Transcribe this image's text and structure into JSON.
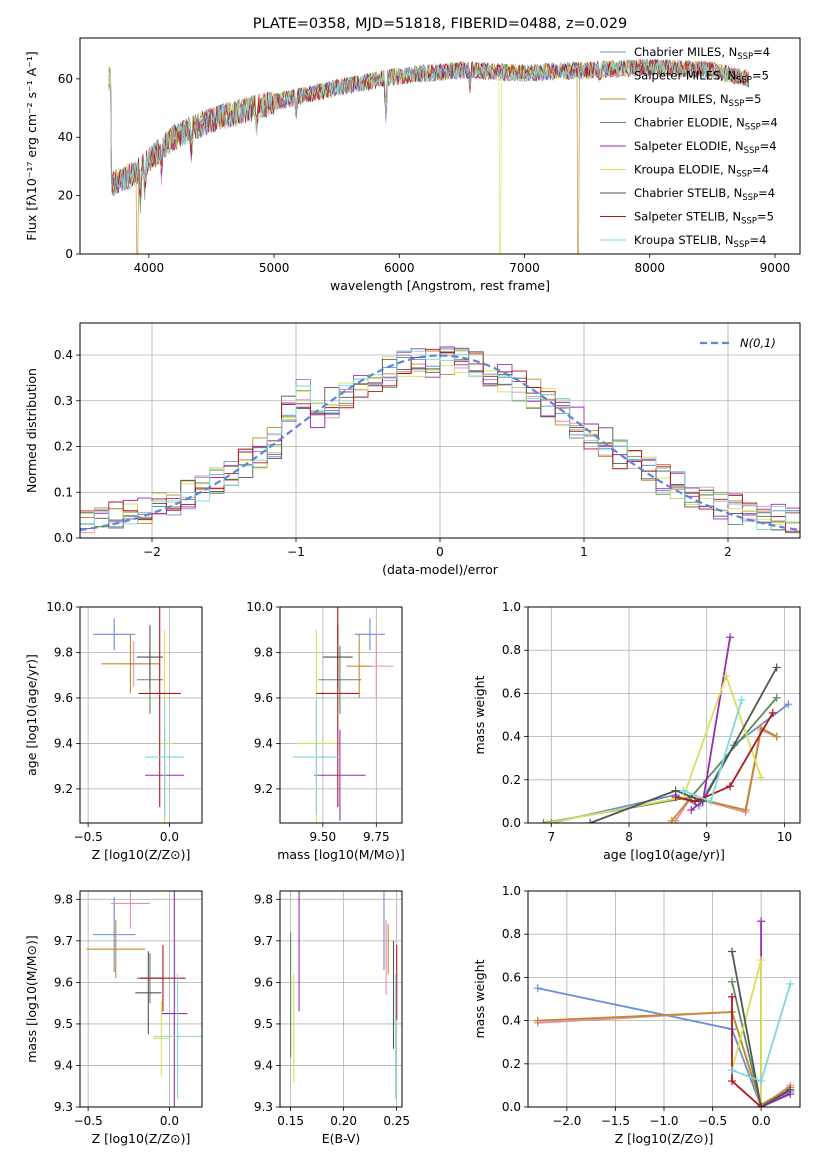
{
  "page_title": "PLATE=0358, MJD=51818, FIBERID=0488, z=0.029",
  "models": [
    {
      "name": "Chabrier MILES",
      "n": "4",
      "color": "#6a8ed8"
    },
    {
      "name": "Salpeter MILES",
      "n": "5",
      "color": "#e58fa8"
    },
    {
      "name": "Kroupa MILES",
      "n": "5",
      "color": "#c28a2f"
    },
    {
      "name": "Chabrier ELODIE",
      "n": "4",
      "color": "#5c8a5c"
    },
    {
      "name": "Salpeter ELODIE",
      "n": "4",
      "color": "#9a2bb5"
    },
    {
      "name": "Kroupa ELODIE",
      "n": "4",
      "color": "#d8e05a"
    },
    {
      "name": "Chabrier STELIB",
      "n": "4",
      "color": "#555555"
    },
    {
      "name": "Salpeter STELIB",
      "n": "5",
      "color": "#b0171d"
    },
    {
      "name": "Kroupa STELIB",
      "n": "4",
      "color": "#7fd7dc"
    }
  ],
  "nssp_label": "N",
  "nssp_sub": "SSP",
  "chart_data": [
    {
      "id": "spectrum",
      "type": "line",
      "xlabel": "wavelength [Angstrom, rest frame]",
      "ylabel": "Flux [fλ10⁻¹⁷ erg cm⁻² s⁻¹ A⁻¹]",
      "xlim": [
        3450,
        9200
      ],
      "ylim": [
        0,
        74
      ],
      "xticks": [
        4000,
        5000,
        6000,
        7000,
        8000,
        9000
      ],
      "yticks": [
        0,
        20,
        40,
        60
      ],
      "continuum": {
        "x": [
          3700,
          3900,
          4000,
          4200,
          4500,
          5000,
          5500,
          6000,
          6500,
          7000,
          7500,
          8000,
          8500,
          8800
        ],
        "y": [
          24,
          28,
          32,
          40,
          46,
          52,
          57,
          61,
          63,
          62,
          63,
          64,
          63,
          60
        ]
      },
      "cutoffs": [
        {
          "series": "Kroupa MILES",
          "at": 3900
        },
        {
          "series": "Kroupa ELODIE",
          "at": 6800
        },
        {
          "series": "Kroupa MILES",
          "at": 7420
        }
      ]
    },
    {
      "id": "residuals",
      "type": "histogram",
      "xlabel": "(data-model)/error",
      "ylabel": "Normed distribution",
      "xlim": [
        -2.5,
        2.5
      ],
      "ylim": [
        0,
        0.47
      ],
      "xticks": [
        -2,
        -1,
        0,
        1,
        2
      ],
      "yticks": [
        0.0,
        0.1,
        0.2,
        0.3,
        0.4
      ],
      "legend": "N(0,1)",
      "legend_position": "top-right"
    },
    {
      "id": "age-vs-Z",
      "type": "scatter",
      "xlabel": "Z [log10(Z/Z⊙)]",
      "ylabel": "age [log10(age/yr)]",
      "xlim": [
        -0.55,
        0.2
      ],
      "ylim": [
        9.05,
        10.0
      ],
      "xticks": [
        -0.5,
        0.0
      ],
      "yticks": [
        9.2,
        9.4,
        9.6,
        9.8,
        10.0
      ],
      "points": [
        {
          "x": -0.34,
          "y": 9.88,
          "xerr": 0.13,
          "yerr": 0.07
        },
        {
          "x": -0.22,
          "y": 9.75,
          "xerr": 0.05,
          "yerr": 0.1
        },
        {
          "x": -0.24,
          "y": 9.75,
          "xerr": 0.18,
          "yerr": 0.13
        },
        {
          "x": -0.12,
          "y": 9.68,
          "xerr": 0.08,
          "yerr": 0.15
        },
        {
          "x": -0.03,
          "y": 9.26,
          "xerr": 0.12,
          "yerr": 0.2
        },
        {
          "x": -0.03,
          "y": 9.4,
          "xerr": 0.05,
          "yerr": 0.5
        },
        {
          "x": -0.12,
          "y": 9.78,
          "xerr": 0.08,
          "yerr": 0.14
        },
        {
          "x": -0.06,
          "y": 9.62,
          "xerr": 0.13,
          "yerr": 0.5
        },
        {
          "x": -0.03,
          "y": 9.34,
          "xerr": 0.12,
          "yerr": 0.25
        }
      ]
    },
    {
      "id": "age-vs-mass",
      "type": "scatter",
      "xlabel": "mass [log10(M/M⊙)]",
      "ylabel": "",
      "xlim": [
        9.3,
        9.87
      ],
      "ylim": [
        9.05,
        10.0
      ],
      "xticks": [
        9.5,
        9.75
      ],
      "yticks": [
        9.2,
        9.4,
        9.6,
        9.8,
        10.0
      ],
      "points": [
        {
          "x": 9.72,
          "y": 9.88,
          "xerr": 0.07,
          "yerr": 0.07
        },
        {
          "x": 9.75,
          "y": 9.74,
          "xerr": 0.08,
          "yerr": 0.14
        },
        {
          "x": 9.67,
          "y": 9.74,
          "xerr": 0.06,
          "yerr": 0.14
        },
        {
          "x": 9.58,
          "y": 9.68,
          "xerr": 0.1,
          "yerr": 0.15
        },
        {
          "x": 9.58,
          "y": 9.26,
          "xerr": 0.12,
          "yerr": 0.2
        },
        {
          "x": 9.47,
          "y": 9.4,
          "xerr": 0.1,
          "yerr": 0.5
        },
        {
          "x": 9.57,
          "y": 9.78,
          "xerr": 0.07,
          "yerr": 0.14
        },
        {
          "x": 9.57,
          "y": 9.62,
          "xerr": 0.1,
          "yerr": 0.5
        },
        {
          "x": 9.47,
          "y": 9.34,
          "xerr": 0.11,
          "yerr": 0.25
        }
      ]
    },
    {
      "id": "weight-vs-age",
      "type": "line",
      "xlabel": "age [log10(age/yr)]",
      "ylabel": "mass weight",
      "xlim": [
        6.7,
        10.2
      ],
      "ylim": [
        0,
        1.0
      ],
      "xticks": [
        7,
        8,
        9,
        10
      ],
      "yticks": [
        0.0,
        0.2,
        0.4,
        0.6,
        0.8,
        1.0
      ],
      "series": [
        {
          "x": [
            7.0,
            8.6,
            8.9,
            9.35,
            10.05
          ],
          "y": [
            0.0,
            0.13,
            0.08,
            0.36,
            0.55
          ]
        },
        {
          "x": [
            8.6,
            8.8,
            9.5,
            9.7,
            9.9
          ],
          "y": [
            0.01,
            0.12,
            0.05,
            0.43,
            0.4
          ]
        },
        {
          "x": [
            8.55,
            8.8,
            9.5,
            9.7,
            9.9
          ],
          "y": [
            0.01,
            0.12,
            0.06,
            0.44,
            0.4
          ]
        },
        {
          "x": [
            6.9,
            8.8,
            9.9
          ],
          "y": [
            0.0,
            0.12,
            0.58
          ]
        },
        {
          "x": [
            8.8,
            8.95,
            9.3
          ],
          "y": [
            0.06,
            0.1,
            0.86
          ]
        },
        {
          "x": [
            6.95,
            8.7,
            9.25,
            9.7
          ],
          "y": [
            0.0,
            0.12,
            0.68,
            0.21
          ]
        },
        {
          "x": [
            7.5,
            8.6,
            8.95,
            9.9
          ],
          "y": [
            0.0,
            0.15,
            0.1,
            0.72
          ]
        },
        {
          "x": [
            8.6,
            8.85,
            9.3,
            9.85
          ],
          "y": [
            0.12,
            0.1,
            0.17,
            0.51
          ]
        },
        {
          "x": [
            8.7,
            9.05,
            9.45
          ],
          "y": [
            0.15,
            0.1,
            0.57
          ]
        }
      ]
    },
    {
      "id": "mass-vs-Z",
      "type": "scatter",
      "xlabel": "Z [log10(Z/Z⊙)]",
      "ylabel": "mass [log10(M/M⊙)]",
      "xlim": [
        -0.55,
        0.2
      ],
      "ylim": [
        9.3,
        9.82
      ],
      "xticks": [
        -0.5,
        0.0
      ],
      "yticks": [
        9.3,
        9.4,
        9.5,
        9.6,
        9.7,
        9.8
      ],
      "points": [
        {
          "x": -0.34,
          "y": 9.715,
          "xerr": 0.13,
          "yerr": 0.09
        },
        {
          "x": -0.24,
          "y": 9.79,
          "xerr": 0.12,
          "yerr": 0.06
        },
        {
          "x": -0.33,
          "y": 9.68,
          "xerr": 0.18,
          "yerr": 0.07
        },
        {
          "x": -0.12,
          "y": 9.61,
          "xerr": 0.08,
          "yerr": 0.06
        },
        {
          "x": 0.03,
          "y": 9.525,
          "xerr": 0.08,
          "yerr": 0.3
        },
        {
          "x": -0.05,
          "y": 9.465,
          "xerr": 0.05,
          "yerr": 0.09
        },
        {
          "x": -0.13,
          "y": 9.575,
          "xerr": 0.08,
          "yerr": 0.1
        },
        {
          "x": -0.04,
          "y": 9.61,
          "xerr": 0.14,
          "yerr": 0.08
        },
        {
          "x": 0.05,
          "y": 9.47,
          "xerr": 0.15,
          "yerr": 0.15
        }
      ]
    },
    {
      "id": "mass-vs-EBV",
      "type": "scatter",
      "xlabel": "E(B-V)",
      "ylabel": "",
      "xlim": [
        0.14,
        0.255
      ],
      "ylim": [
        9.3,
        9.82
      ],
      "xticks": [
        0.15,
        0.2,
        0.25
      ],
      "yticks": [
        9.3,
        9.4,
        9.5,
        9.6,
        9.7,
        9.8
      ],
      "points": [
        {
          "x": 0.238,
          "y": 9.74,
          "xerr": 0,
          "yerr": 0.11
        },
        {
          "x": 0.24,
          "y": 9.66,
          "xerr": 0,
          "yerr": 0.09
        },
        {
          "x": 0.242,
          "y": 9.68,
          "xerr": 0,
          "yerr": 0.06
        },
        {
          "x": 0.15,
          "y": 9.57,
          "xerr": 0,
          "yerr": 0.15
        },
        {
          "x": 0.158,
          "y": 9.68,
          "xerr": 0,
          "yerr": 0.15
        },
        {
          "x": 0.153,
          "y": 9.49,
          "xerr": 0,
          "yerr": 0.13
        },
        {
          "x": 0.247,
          "y": 9.57,
          "xerr": 0,
          "yerr": 0.13
        },
        {
          "x": 0.25,
          "y": 9.6,
          "xerr": 0,
          "yerr": 0.09
        },
        {
          "x": 0.249,
          "y": 9.47,
          "xerr": 0,
          "yerr": 0.15
        }
      ]
    },
    {
      "id": "weight-vs-Z",
      "type": "line",
      "xlabel": "Z [log10(Z/Z⊙)]",
      "ylabel": "mass weight",
      "xlim": [
        -2.4,
        0.4
      ],
      "ylim": [
        0,
        1.0
      ],
      "xticks": [
        -2.0,
        -1.5,
        -1.0,
        -0.5,
        0.0
      ],
      "yticks": [
        0.0,
        0.2,
        0.4,
        0.6,
        0.8,
        1.0
      ],
      "series": [
        {
          "x": [
            -2.3,
            -0.3,
            0.0,
            0.3
          ],
          "y": [
            0.55,
            0.36,
            0.0,
            0.07
          ]
        },
        {
          "x": [
            -2.3,
            -0.3,
            0.0,
            0.3
          ],
          "y": [
            0.39,
            0.44,
            0.0,
            0.1
          ]
        },
        {
          "x": [
            -2.3,
            -0.3,
            0.0,
            0.3
          ],
          "y": [
            0.4,
            0.44,
            0.01,
            0.09
          ]
        },
        {
          "x": [
            -0.3,
            0.0,
            0.3
          ],
          "y": [
            0.58,
            0.0,
            0.08
          ]
        },
        {
          "x": [
            0.0,
            0.0,
            0.3
          ],
          "y": [
            0.86,
            0.0,
            0.06
          ]
        },
        {
          "x": [
            -0.3,
            0.0,
            0.0
          ],
          "y": [
            0.17,
            0.68,
            0.0
          ]
        },
        {
          "x": [
            -0.3,
            0.0,
            0.3
          ],
          "y": [
            0.72,
            0.0,
            0.08
          ]
        },
        {
          "x": [
            -0.3,
            -0.3,
            0.0
          ],
          "y": [
            0.51,
            0.12,
            0.0
          ]
        },
        {
          "x": [
            -0.3,
            0.0,
            0.3
          ],
          "y": [
            0.17,
            0.12,
            0.57
          ]
        }
      ]
    }
  ]
}
